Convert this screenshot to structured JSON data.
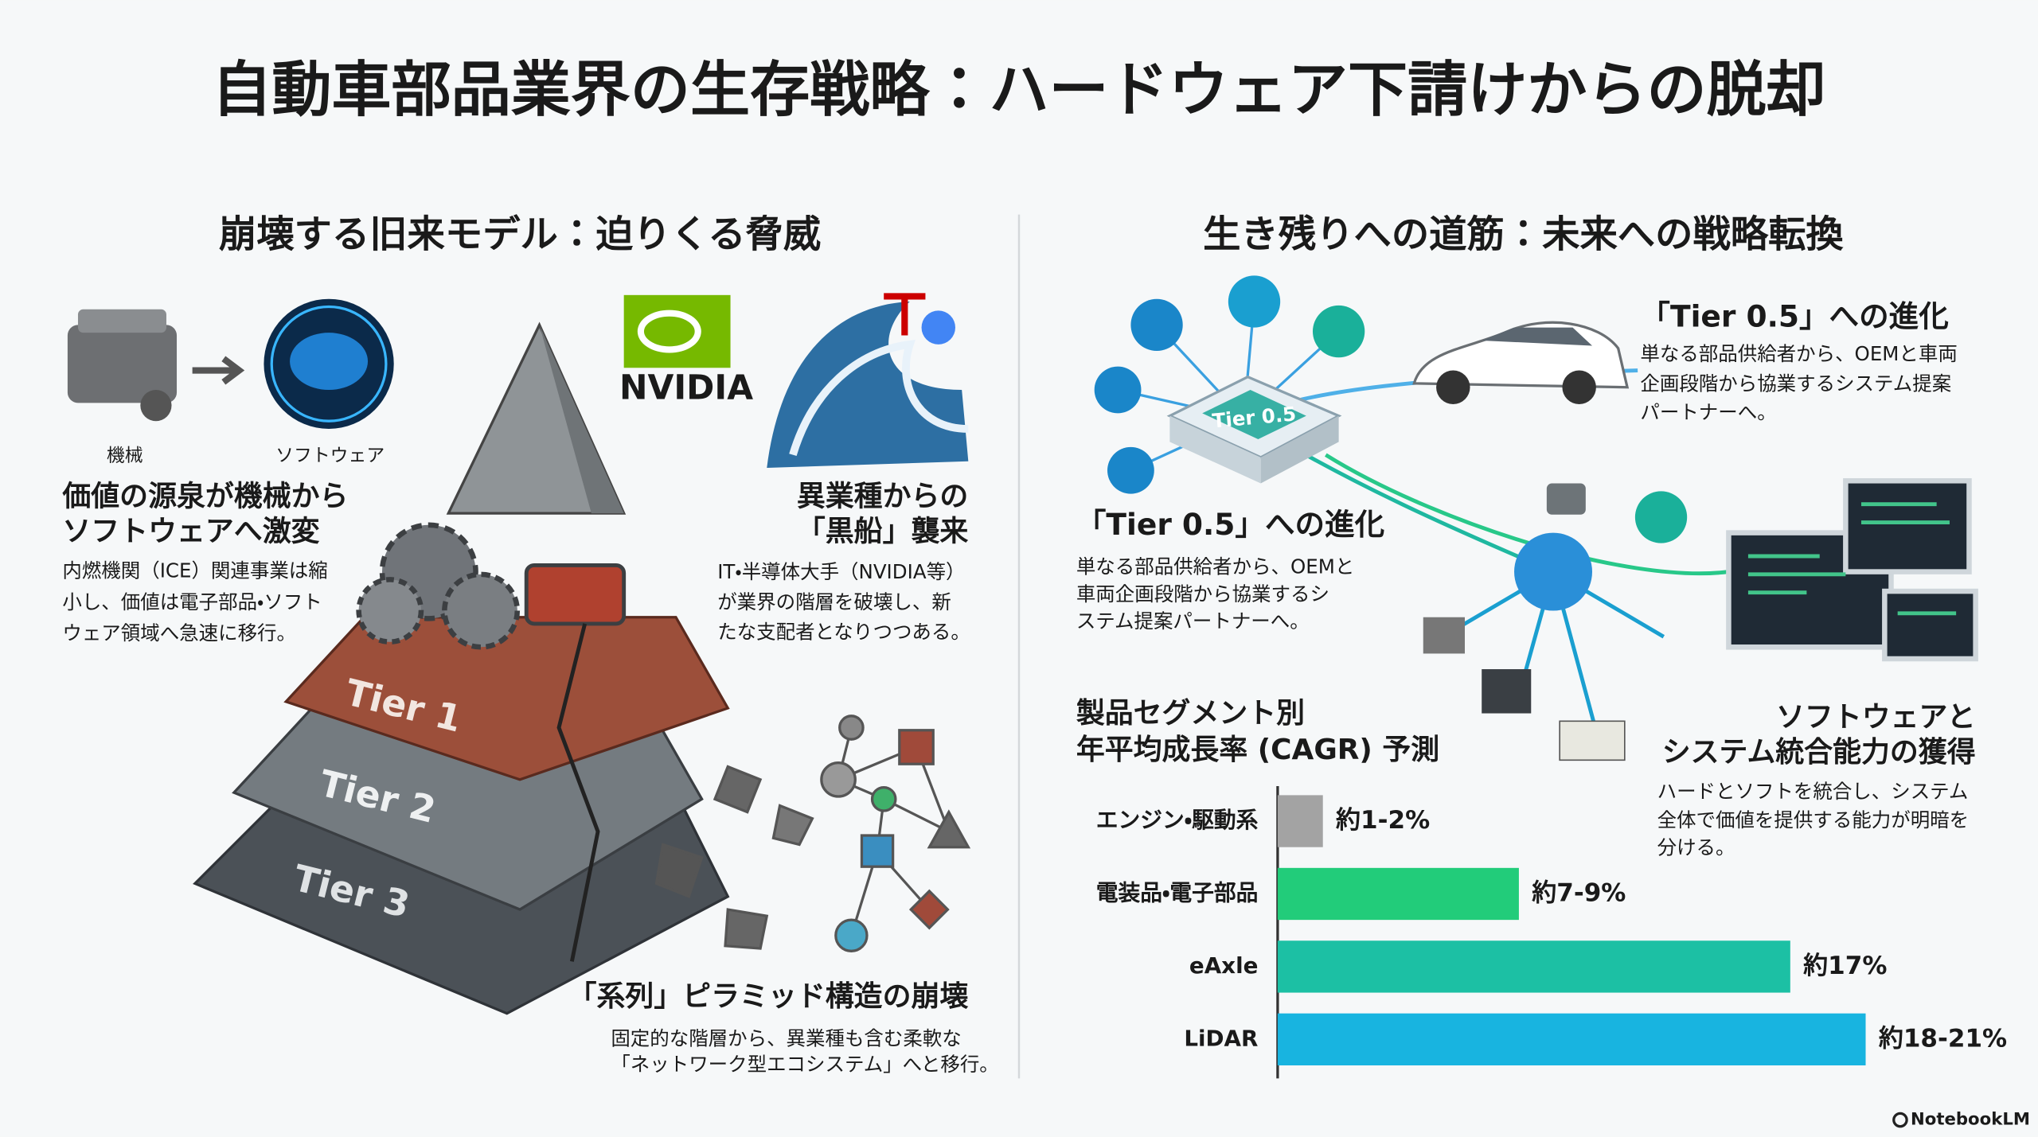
{
  "header": {
    "title": "自動車部品業界の生存戦略：ハードウェア下請けからの脱却"
  },
  "left": {
    "heading": "崩壊する旧来モデル：迫りくる脅威",
    "icon_labels": [
      "機械",
      "ソフトウェア"
    ],
    "brand": "NVIDIA",
    "tiers": [
      "Tier 1",
      "Tier 2",
      "Tier 3"
    ],
    "blocks": [
      {
        "title": [
          "価値の源泉が機械から",
          "ソフトウェアへ激変"
        ],
        "body": [
          "内燃機関（ICE）関連事業は縮",
          "小し、価値は電子部品・ソフト",
          "ウェア領域へ急速に移行。"
        ]
      },
      {
        "title": [
          "異業種からの",
          "「黒船」襲来"
        ],
        "body": [
          "IT・半導体大手（NVIDIA等）",
          "が業界の階層を破壊し、新",
          "たな支配者となりつつある。"
        ]
      },
      {
        "title": [
          "「系列」ピラミッド構造の崩壊"
        ],
        "body": [
          "固定的な階層から、異業種も含む柔軟な",
          "「ネットワーク型エコシステム」へと移行。"
        ]
      }
    ]
  },
  "right": {
    "heading": "生き残りへの道筋：未来への戦略転換",
    "hub_label": "Tier 0.5",
    "blocks": [
      {
        "title": [
          "「Tier 0.5」への進化"
        ],
        "body": [
          "単なる部品供給者から、OEMと車両",
          "企画段階から協業するシステム提案",
          "パートナーへ。"
        ]
      },
      {
        "title": [
          "「Tier 0.5」への進化"
        ],
        "body": [
          "単なる部品供給者から、OEMと",
          "車両企画段階から協業するシ",
          "ステム提案パートナーへ。"
        ]
      },
      {
        "title": [
          "ソフトウェアと",
          "システム統合能力の獲得"
        ],
        "body": [
          "ハードとソフトを統合し、システム",
          "全体で価値を提供する能力が明暗を",
          "分ける。"
        ]
      }
    ]
  },
  "chart_data": {
    "type": "hbar",
    "title": [
      "製品セグメント別",
      "年平均成長率 (CAGR) 予測"
    ],
    "categories": [
      "エンジン・駆動系",
      "電装品・電子部品",
      "eAxle",
      "LiDAR"
    ],
    "values": [
      1.5,
      8,
      17,
      19.5
    ],
    "value_labels": [
      "約1-2%",
      "約7-9%",
      "約17%",
      "約18-21%"
    ],
    "colors": [
      "#a3a3a3",
      "#22cc7a",
      "#1cc0a4",
      "#18b4e0"
    ],
    "xlim": [
      0,
      20
    ]
  },
  "footer": "NotebookLM"
}
